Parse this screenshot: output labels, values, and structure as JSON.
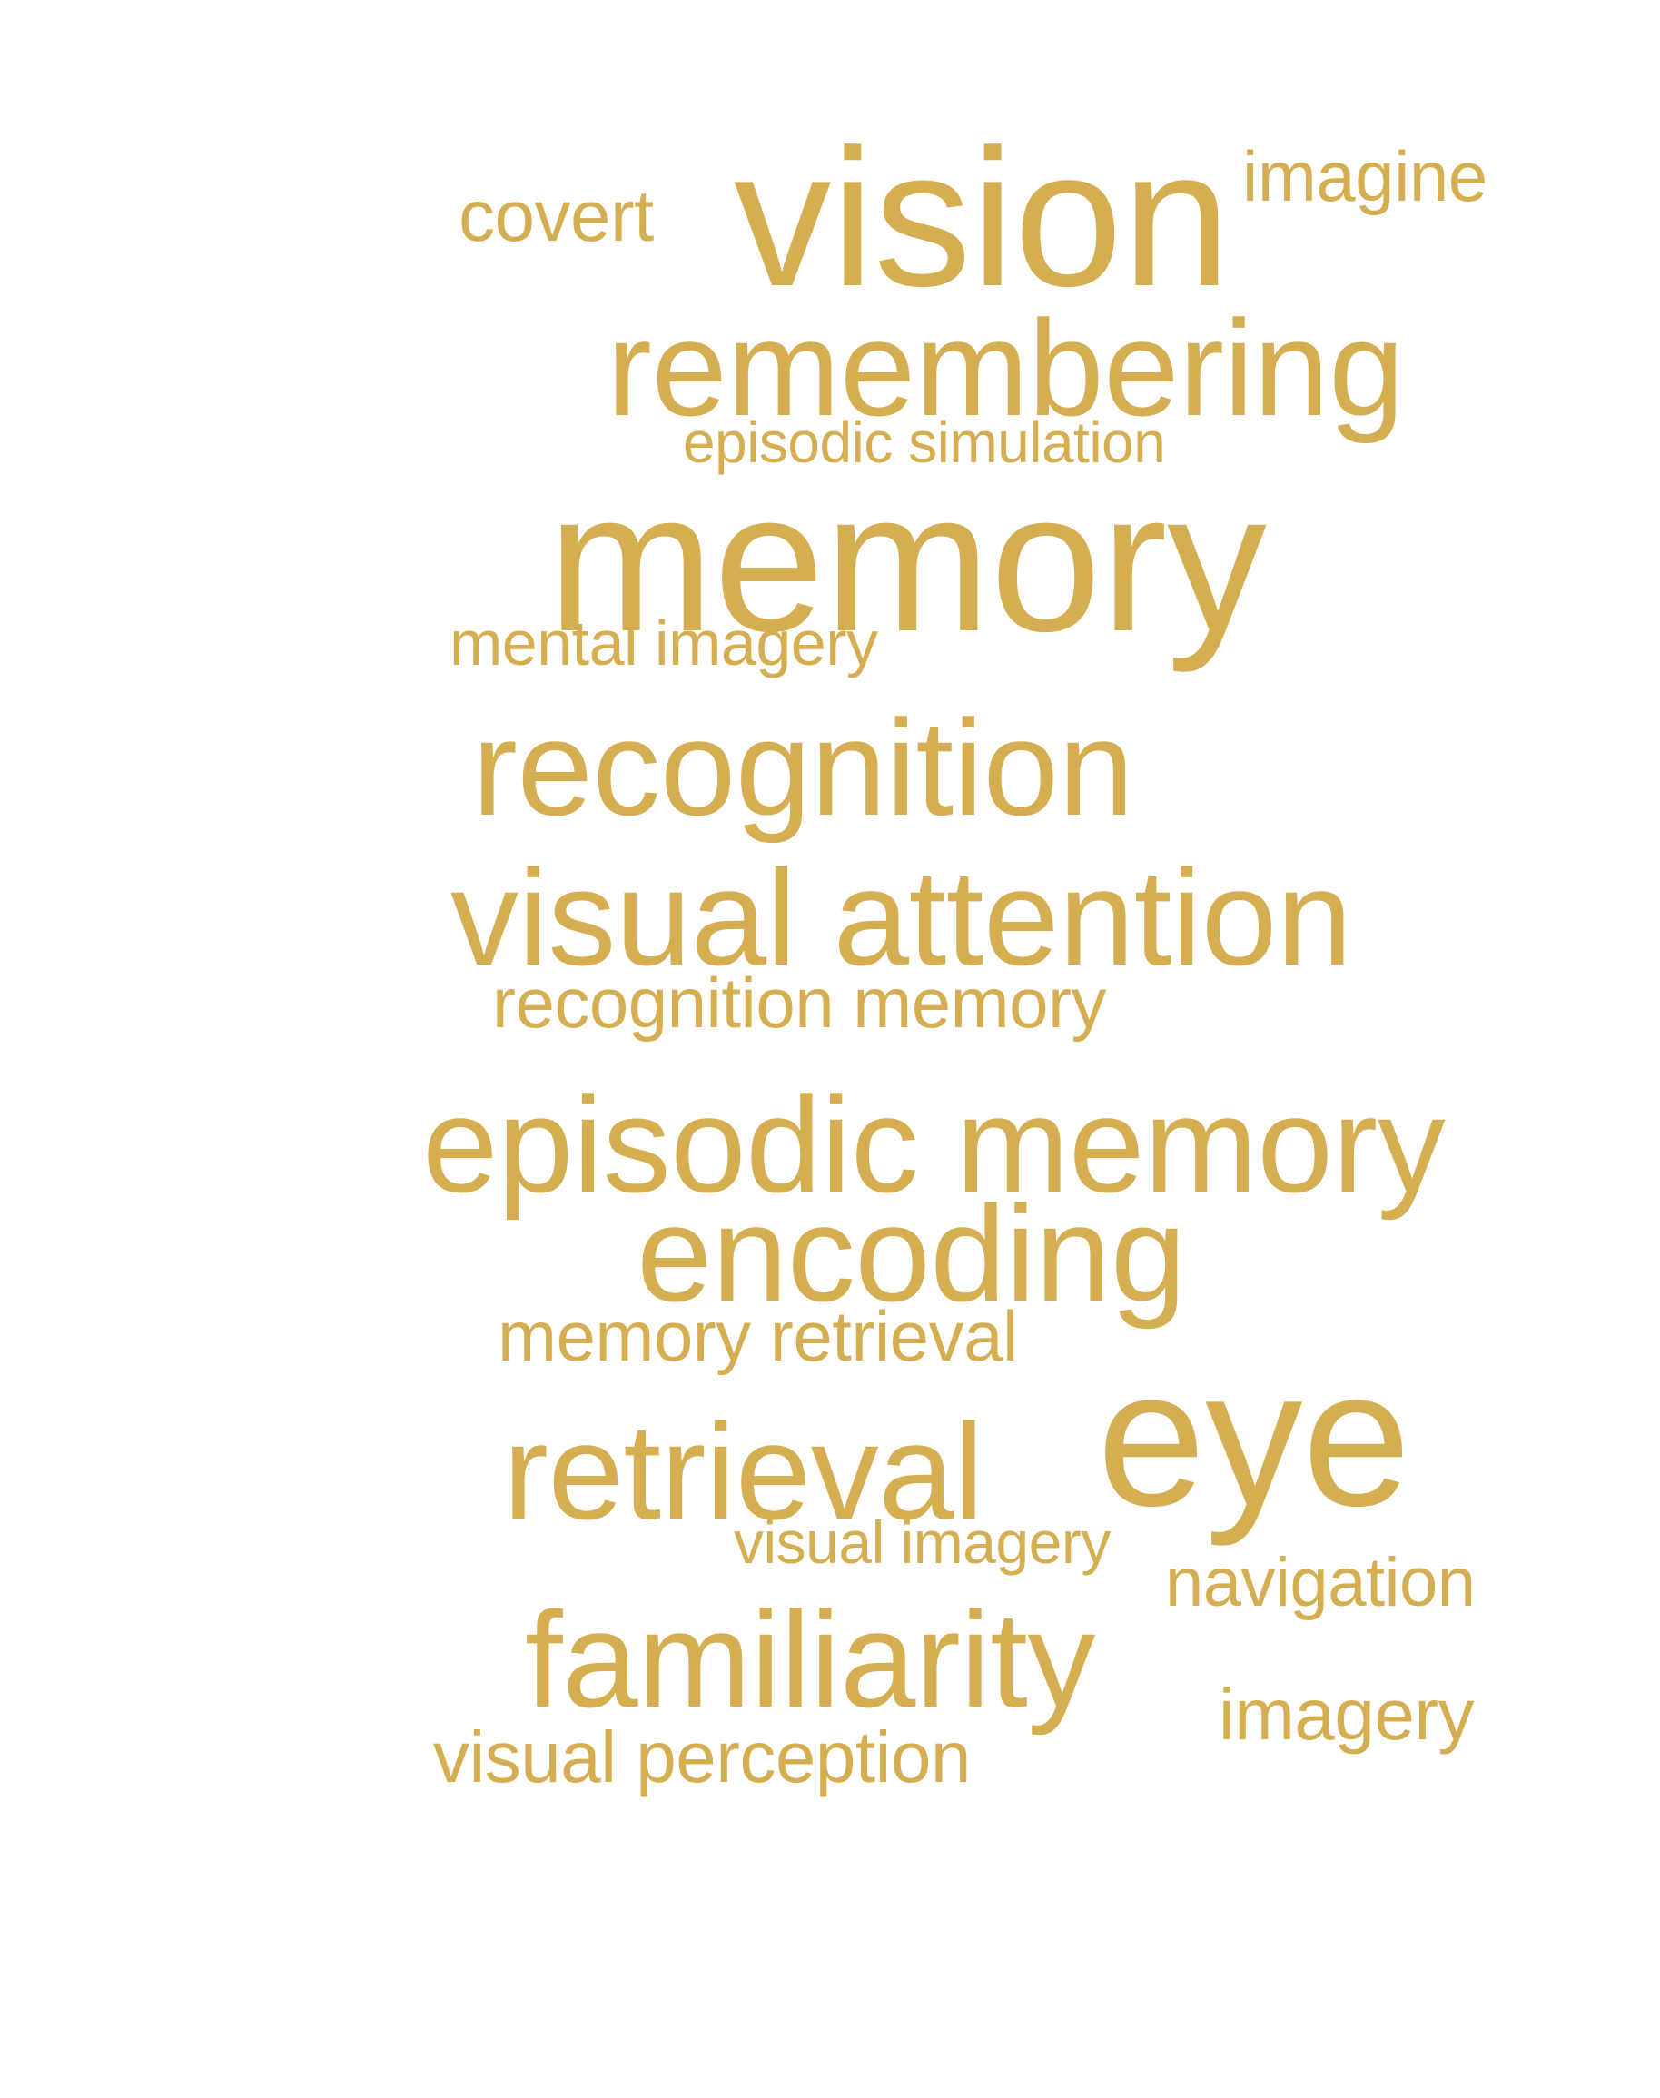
{
  "word_cloud": {
    "color": "#D6AE52",
    "words": [
      {
        "id": "covert",
        "text": "covert"
      },
      {
        "id": "vision",
        "text": "vision"
      },
      {
        "id": "imagine",
        "text": "imagine"
      },
      {
        "id": "remembering",
        "text": "remembering"
      },
      {
        "id": "episodic_simulation",
        "text": "episodic simulation"
      },
      {
        "id": "memory",
        "text": "memory"
      },
      {
        "id": "mental_imagery",
        "text": "mental imagery"
      },
      {
        "id": "recognition",
        "text": "recognition"
      },
      {
        "id": "visual_attention",
        "text": "visual attention"
      },
      {
        "id": "recognition_memory",
        "text": "recognition memory"
      },
      {
        "id": "episodic_memory",
        "text": "episodic memory"
      },
      {
        "id": "encoding",
        "text": "encoding"
      },
      {
        "id": "memory_retrieval",
        "text": "memory retrieval"
      },
      {
        "id": "eye",
        "text": "eye"
      },
      {
        "id": "retrieval",
        "text": "retrieval"
      },
      {
        "id": "visual_imagery",
        "text": "visual imagery"
      },
      {
        "id": "navigation",
        "text": "navigation"
      },
      {
        "id": "familiarity",
        "text": "familiarity"
      },
      {
        "id": "imagery",
        "text": "imagery"
      },
      {
        "id": "visual_perception",
        "text": "visual perception"
      }
    ]
  }
}
